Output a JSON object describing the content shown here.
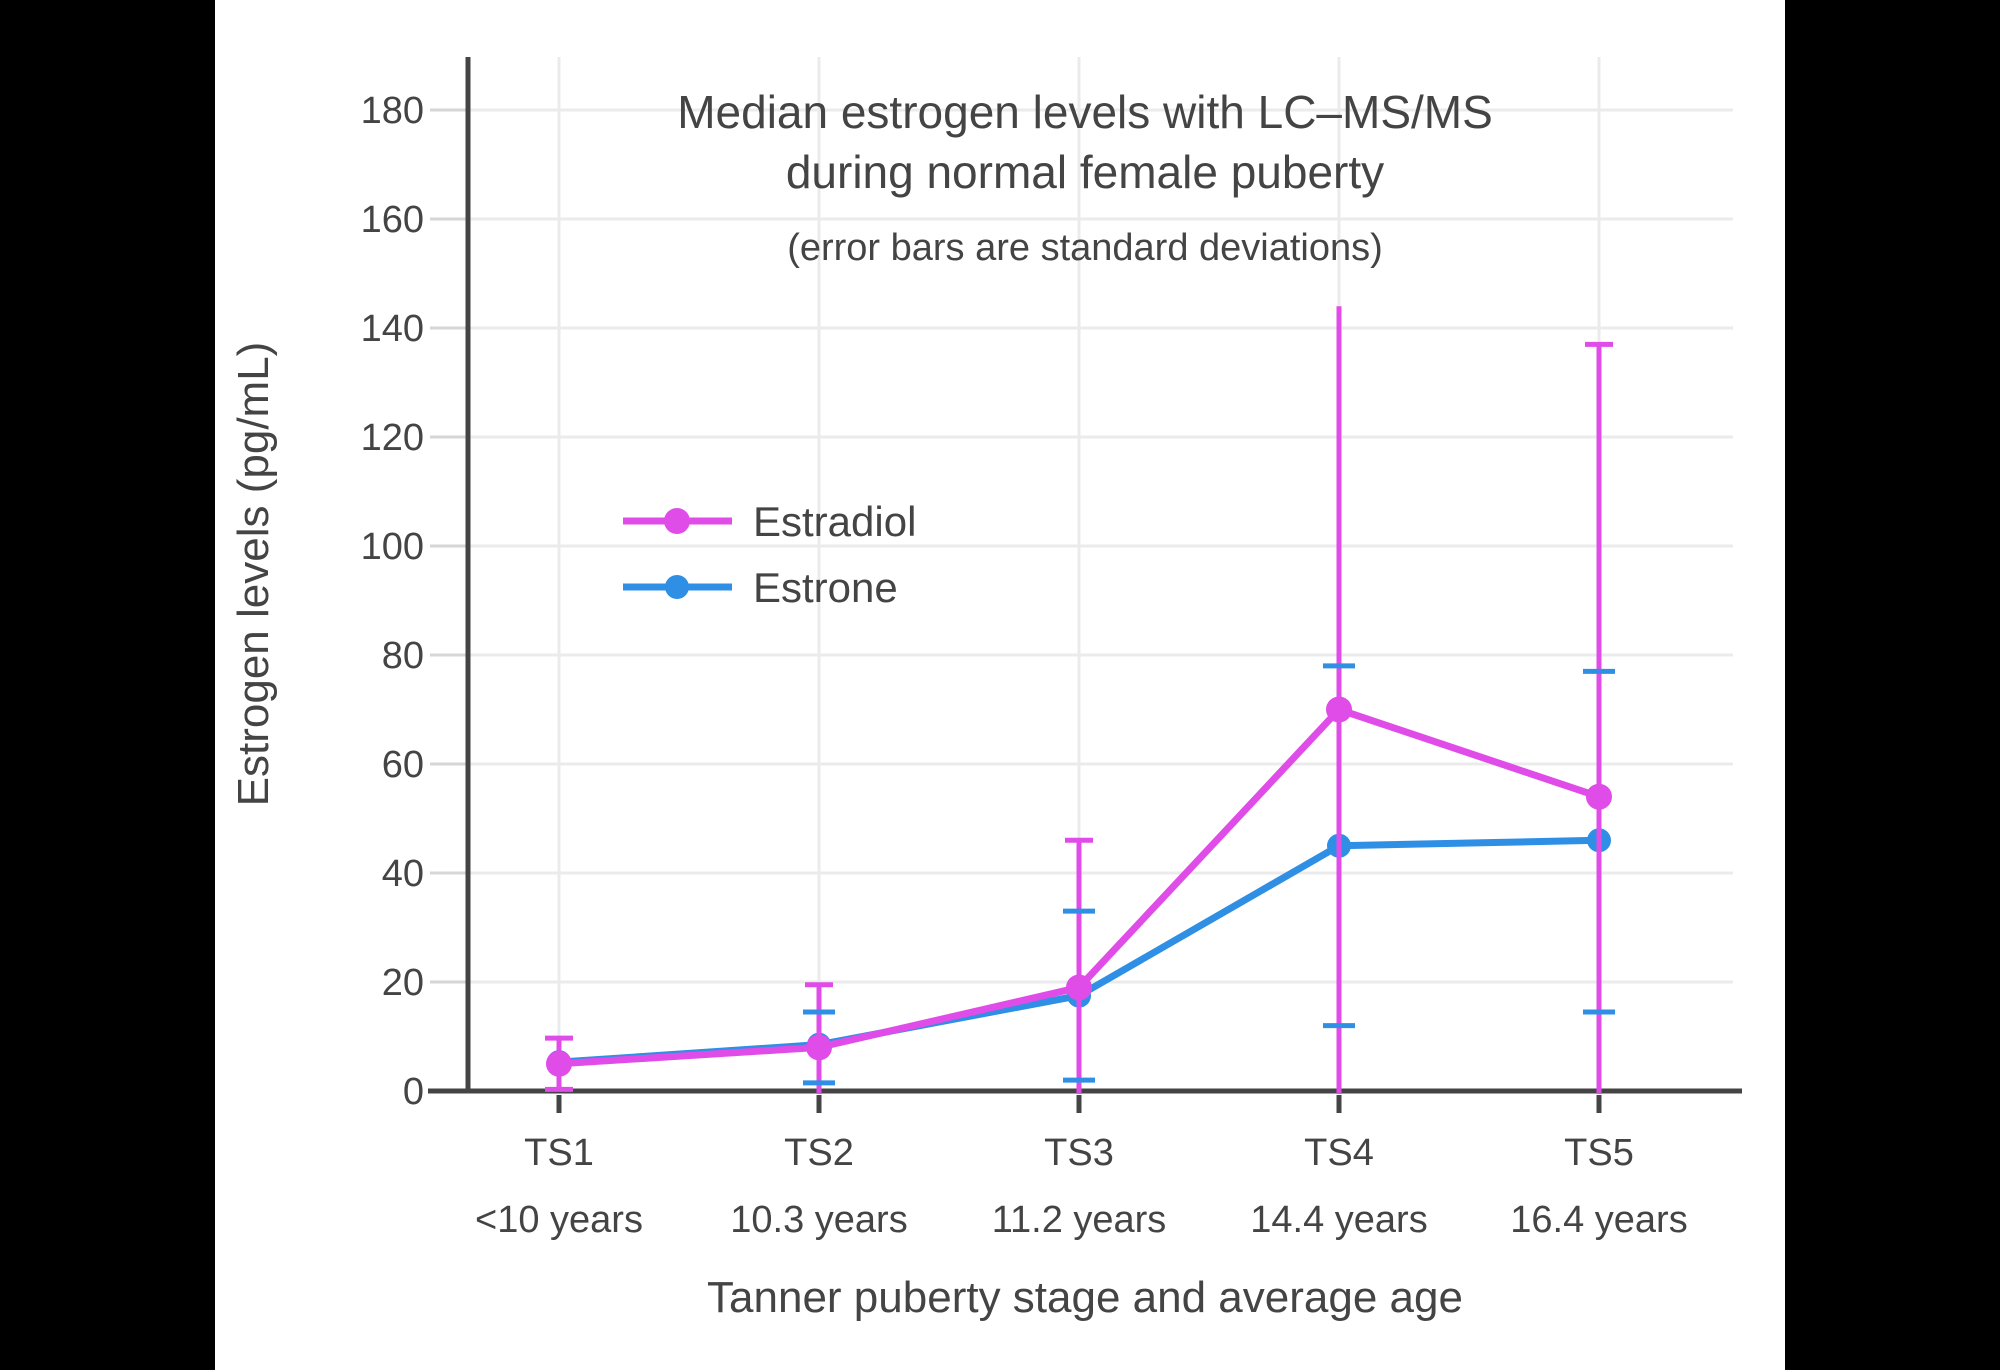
{
  "window": {
    "bg": "#000000",
    "panel_bg": "#ffffff"
  },
  "chart_data": {
    "type": "line",
    "title_line1": "Median estrogen levels with LC–MS/MS",
    "title_line2": "during normal female puberty",
    "subtitle": "(error bars are standard deviations)",
    "xlabel": "Tanner puberty stage and average age",
    "ylabel": "Estrogen levels (pg/mL)",
    "categories": [
      "TS1",
      "TS2",
      "TS3",
      "TS4",
      "TS5"
    ],
    "category_sublabels": [
      "<10 years",
      "10.3 years",
      "11.2 years",
      "14.4 years",
      "16.4 years"
    ],
    "yticks": [
      0,
      20,
      40,
      60,
      80,
      100,
      120,
      140,
      160,
      180
    ],
    "ylim": [
      0,
      190
    ],
    "grid": true,
    "legend_position": "inside-upper-left",
    "series": [
      {
        "name": "Estrone",
        "color": "#2E8FE5",
        "values": [
          5.3,
          8.5,
          17.5,
          45,
          46
        ],
        "sd_low": [
          null,
          1.5,
          2,
          12,
          14.5
        ],
        "sd_high": [
          null,
          14.5,
          33,
          78,
          77
        ],
        "cap_low": [
          false,
          true,
          true,
          true,
          true
        ],
        "cap_high": [
          false,
          true,
          true,
          true,
          true
        ]
      },
      {
        "name": "Estradiol",
        "color": "#E04CE8",
        "values": [
          5,
          8,
          19,
          70,
          54
        ],
        "sd_low": [
          0.3,
          0,
          0,
          0,
          0
        ],
        "sd_high": [
          9.7,
          19.5,
          46,
          144,
          137
        ],
        "cap_low": [
          true,
          false,
          false,
          false,
          false
        ],
        "cap_high": [
          true,
          true,
          true,
          false,
          true
        ]
      }
    ],
    "colors": {
      "grid": "#EBEBEB",
      "ytick_stub": "#D6D6D6",
      "axis": "#444444",
      "text": "#444444"
    }
  },
  "legend": {
    "items": [
      "Estradiol",
      "Estrone"
    ]
  }
}
